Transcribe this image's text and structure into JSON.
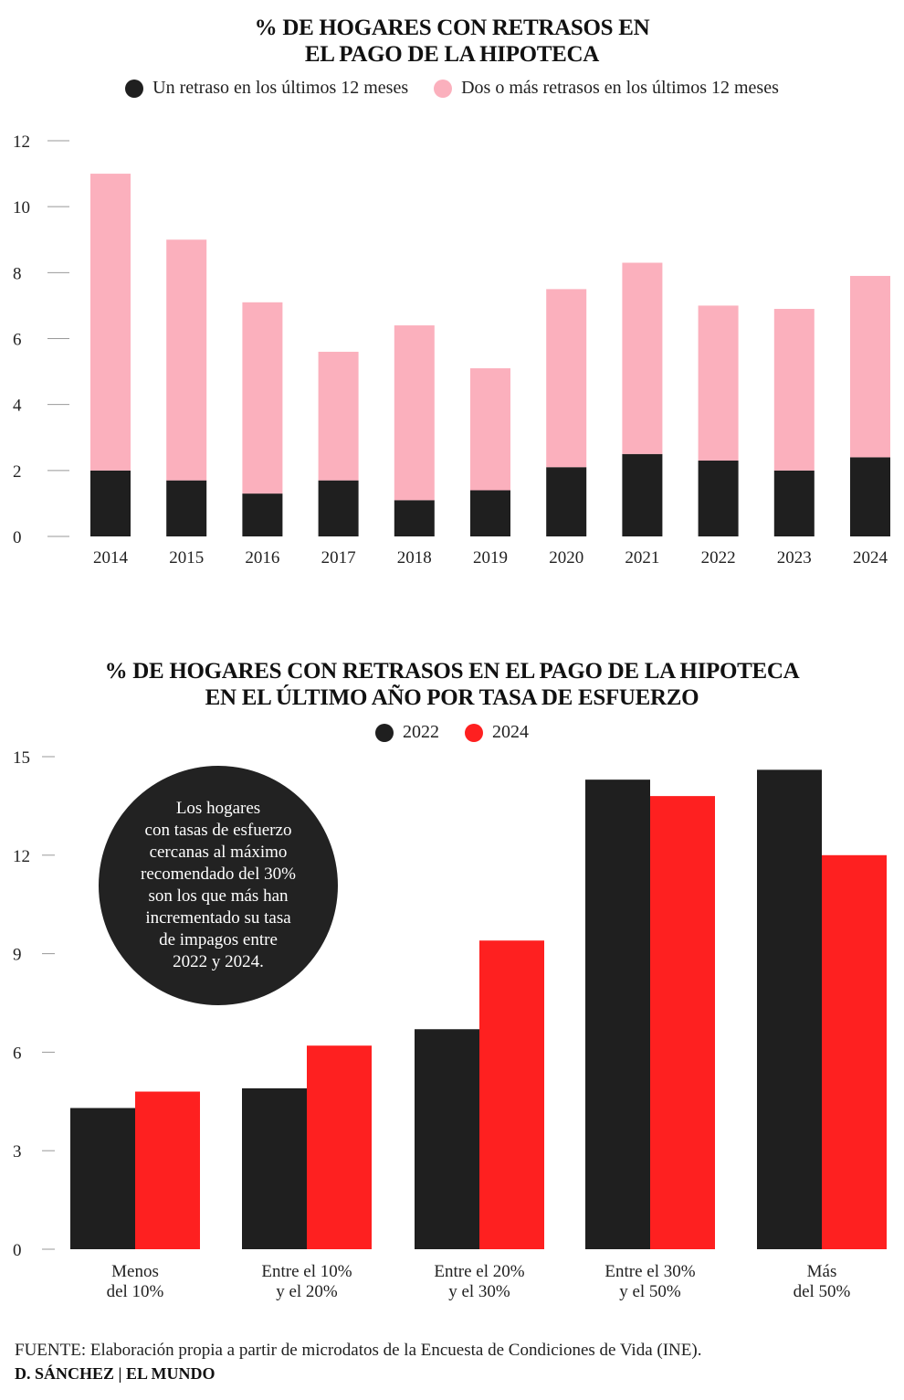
{
  "charts": [
    {
      "title_line1": "% DE HOGARES CON RETRASOS EN",
      "title_line2": "EL PAGO DE LA HIPOTECA",
      "legend": [
        {
          "label": "Un retraso en los últimos 12 meses",
          "color": "#1f1f1f"
        },
        {
          "label": "Dos o más retrasos en los últimos 12 meses",
          "color": "#fbb0bd"
        }
      ]
    },
    {
      "title_line1": "% DE HOGARES CON RETRASOS EN EL PAGO DE LA HIPOTECA",
      "title_line2": "EN EL ÚLTIMO AÑO POR TASA DE ESFUERZO",
      "legend": [
        {
          "label": "2022",
          "color": "#1f1f1f"
        },
        {
          "label": "2024",
          "color": "#fe2020"
        }
      ],
      "callout": "Los hogares\ncon tasas de esfuerzo\ncercanas al máximo\nrecomendado del 30%\nson los que más han\nincrementado su tasa\nde impagos entre\n2022 y 2024."
    }
  ],
  "chart_data": [
    {
      "type": "bar",
      "stacked": true,
      "title": "% DE HOGARES CON RETRASOS EN EL PAGO DE LA HIPOTECA",
      "categories": [
        "2014",
        "2015",
        "2016",
        "2017",
        "2018",
        "2019",
        "2020",
        "2021",
        "2022",
        "2023",
        "2024"
      ],
      "series": [
        {
          "name": "Un retraso en los últimos 12 meses",
          "color": "#1f1f1f",
          "values": [
            2.0,
            1.7,
            1.3,
            1.7,
            1.1,
            1.4,
            2.1,
            2.5,
            2.3,
            2.0,
            2.4
          ]
        },
        {
          "name": "Dos o más retrasos en los últimos 12 meses",
          "color": "#fbb0bd",
          "values": [
            9.0,
            7.3,
            5.8,
            3.9,
            5.3,
            3.7,
            5.4,
            5.8,
            4.7,
            4.9,
            5.5
          ]
        }
      ],
      "yticks": [
        0,
        2,
        4,
        6,
        8,
        10,
        12
      ],
      "ylim": [
        0,
        12
      ],
      "grid": false,
      "legend_position": "top"
    },
    {
      "type": "bar",
      "stacked": false,
      "title": "% DE HOGARES CON RETRASOS EN EL PAGO DE LA HIPOTECA EN EL ÚLTIMO AÑO POR TASA DE ESFUERZO",
      "categories": [
        [
          "Menos",
          "del 10%"
        ],
        [
          "Entre el 10%",
          "y el 20%"
        ],
        [
          "Entre el 20%",
          "y el 30%"
        ],
        [
          "Entre el 30%",
          "y el 50%"
        ],
        [
          "Más",
          "del 50%"
        ]
      ],
      "series": [
        {
          "name": "2022",
          "color": "#1f1f1f",
          "values": [
            4.3,
            4.9,
            6.7,
            14.3,
            14.6
          ]
        },
        {
          "name": "2024",
          "color": "#fe2020",
          "values": [
            4.8,
            6.2,
            9.4,
            13.8,
            12.0
          ]
        }
      ],
      "yticks": [
        0,
        3,
        6,
        9,
        12,
        15
      ],
      "ylim": [
        0,
        15
      ],
      "grid": false,
      "legend_position": "top"
    }
  ],
  "footer": {
    "source": "FUENTE:  Elaboración propia a partir de microdatos de la Encuesta de Condiciones de Vida (INE).",
    "credit": "D. SÁNCHEZ | EL MUNDO"
  }
}
